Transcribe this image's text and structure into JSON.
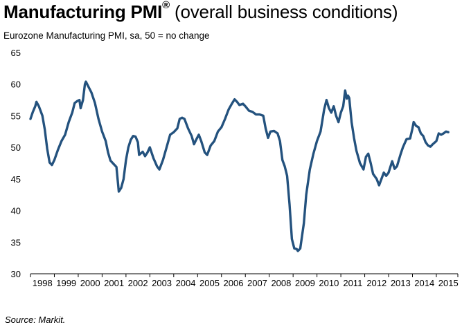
{
  "header": {
    "title_bold": "Manufacturing PMI",
    "title_sup": "®",
    "title_rest": " (overall business conditions)",
    "subtitle": "Eurozone Manufacturing PMI, sa, 50 = no change"
  },
  "footer": {
    "source": "Source: Markit."
  },
  "colors": {
    "line": "#24527e",
    "axis": "#000000"
  },
  "chart_data": {
    "type": "line",
    "title": "Manufacturing PMI® (overall business conditions)",
    "subtitle": "Eurozone Manufacturing PMI, sa, 50 = no change",
    "xlabel": "",
    "ylabel": "",
    "ylim": [
      30,
      65
    ],
    "yticks": [
      30,
      35,
      40,
      45,
      50,
      55,
      60,
      65
    ],
    "xlim": [
      1998.0,
      2015.9
    ],
    "xticks": [
      "1998",
      "1999",
      "2000",
      "2001",
      "2002",
      "2003",
      "2004",
      "2005",
      "2006",
      "2007",
      "2008",
      "2009",
      "2010",
      "2011",
      "2012",
      "2013",
      "2014",
      "2015"
    ],
    "grid": false,
    "series": [
      {
        "name": "Eurozone Manufacturing PMI",
        "points": [
          [
            1998.0,
            54.5
          ],
          [
            1998.1,
            55.6
          ],
          [
            1998.2,
            56.5
          ],
          [
            1998.25,
            57.2
          ],
          [
            1998.35,
            56.5
          ],
          [
            1998.5,
            55.0
          ],
          [
            1998.6,
            52.8
          ],
          [
            1998.7,
            49.8
          ],
          [
            1998.8,
            47.6
          ],
          [
            1998.9,
            47.2
          ],
          [
            1999.0,
            48.0
          ],
          [
            1999.15,
            49.6
          ],
          [
            1999.3,
            51.0
          ],
          [
            1999.45,
            52.0
          ],
          [
            1999.6,
            54.0
          ],
          [
            1999.75,
            55.5
          ],
          [
            1999.85,
            57.0
          ],
          [
            1999.95,
            57.3
          ],
          [
            2000.05,
            57.5
          ],
          [
            2000.1,
            56.2
          ],
          [
            2000.2,
            57.5
          ],
          [
            2000.28,
            60.0
          ],
          [
            2000.32,
            60.4
          ],
          [
            2000.4,
            59.8
          ],
          [
            2000.55,
            58.7
          ],
          [
            2000.7,
            57.0
          ],
          [
            2000.85,
            54.5
          ],
          [
            2001.0,
            52.5
          ],
          [
            2001.15,
            51.0
          ],
          [
            2001.25,
            49.2
          ],
          [
            2001.35,
            47.9
          ],
          [
            2001.5,
            47.3
          ],
          [
            2001.6,
            46.9
          ],
          [
            2001.7,
            43.0
          ],
          [
            2001.8,
            43.6
          ],
          [
            2001.9,
            45.0
          ],
          [
            2002.0,
            48.0
          ],
          [
            2002.1,
            50.0
          ],
          [
            2002.2,
            51.2
          ],
          [
            2002.3,
            51.8
          ],
          [
            2002.4,
            51.7
          ],
          [
            2002.5,
            50.8
          ],
          [
            2002.55,
            48.8
          ],
          [
            2002.7,
            49.3
          ],
          [
            2002.8,
            48.6
          ],
          [
            2002.9,
            49.2
          ],
          [
            2003.0,
            50.0
          ],
          [
            2003.15,
            48.3
          ],
          [
            2003.3,
            47.0
          ],
          [
            2003.4,
            46.5
          ],
          [
            2003.55,
            48.0
          ],
          [
            2003.7,
            50.0
          ],
          [
            2003.85,
            52.0
          ],
          [
            2004.0,
            52.4
          ],
          [
            2004.15,
            53.0
          ],
          [
            2004.25,
            54.5
          ],
          [
            2004.35,
            54.7
          ],
          [
            2004.45,
            54.5
          ],
          [
            2004.6,
            53.0
          ],
          [
            2004.75,
            51.8
          ],
          [
            2004.85,
            50.5
          ],
          [
            2004.95,
            51.3
          ],
          [
            2005.05,
            52.0
          ],
          [
            2005.15,
            51.0
          ],
          [
            2005.3,
            49.2
          ],
          [
            2005.4,
            48.8
          ],
          [
            2005.55,
            50.3
          ],
          [
            2005.7,
            51.0
          ],
          [
            2005.85,
            52.5
          ],
          [
            2006.0,
            53.2
          ],
          [
            2006.15,
            54.5
          ],
          [
            2006.3,
            56.0
          ],
          [
            2006.45,
            57.0
          ],
          [
            2006.55,
            57.6
          ],
          [
            2006.65,
            57.2
          ],
          [
            2006.75,
            56.7
          ],
          [
            2006.9,
            56.9
          ],
          [
            2007.0,
            56.5
          ],
          [
            2007.15,
            55.8
          ],
          [
            2007.3,
            55.6
          ],
          [
            2007.45,
            55.2
          ],
          [
            2007.6,
            55.2
          ],
          [
            2007.75,
            55.0
          ],
          [
            2007.85,
            53.0
          ],
          [
            2007.95,
            51.5
          ],
          [
            2008.05,
            52.5
          ],
          [
            2008.2,
            52.6
          ],
          [
            2008.35,
            52.2
          ],
          [
            2008.45,
            51.0
          ],
          [
            2008.55,
            48.0
          ],
          [
            2008.65,
            47.0
          ],
          [
            2008.75,
            45.5
          ],
          [
            2008.85,
            41.0
          ],
          [
            2008.95,
            35.5
          ],
          [
            2009.05,
            34.0
          ],
          [
            2009.15,
            33.9
          ],
          [
            2009.2,
            33.6
          ],
          [
            2009.3,
            34.0
          ],
          [
            2009.45,
            38.0
          ],
          [
            2009.55,
            42.5
          ],
          [
            2009.7,
            46.5
          ],
          [
            2009.85,
            49.0
          ],
          [
            2010.0,
            51.0
          ],
          [
            2010.15,
            52.5
          ],
          [
            2010.3,
            56.0
          ],
          [
            2010.4,
            57.5
          ],
          [
            2010.5,
            56.2
          ],
          [
            2010.6,
            55.5
          ],
          [
            2010.7,
            56.5
          ],
          [
            2010.8,
            55.0
          ],
          [
            2010.9,
            54.0
          ],
          [
            2011.0,
            55.5
          ],
          [
            2011.1,
            56.5
          ],
          [
            2011.18,
            59.0
          ],
          [
            2011.25,
            57.7
          ],
          [
            2011.3,
            58.2
          ],
          [
            2011.35,
            57.8
          ],
          [
            2011.45,
            54.0
          ],
          [
            2011.55,
            51.5
          ],
          [
            2011.65,
            49.5
          ],
          [
            2011.8,
            47.5
          ],
          [
            2011.95,
            46.5
          ],
          [
            2012.05,
            48.5
          ],
          [
            2012.15,
            49.0
          ],
          [
            2012.25,
            47.5
          ],
          [
            2012.35,
            45.8
          ],
          [
            2012.5,
            45.0
          ],
          [
            2012.6,
            44.0
          ],
          [
            2012.7,
            45.0
          ],
          [
            2012.8,
            46.0
          ],
          [
            2012.9,
            45.5
          ],
          [
            2013.0,
            46.0
          ],
          [
            2013.15,
            47.8
          ],
          [
            2013.25,
            46.6
          ],
          [
            2013.35,
            47.0
          ],
          [
            2013.5,
            48.9
          ],
          [
            2013.6,
            50.0
          ],
          [
            2013.75,
            51.3
          ],
          [
            2013.9,
            51.4
          ],
          [
            2014.0,
            53.0
          ],
          [
            2014.05,
            54.0
          ],
          [
            2014.15,
            53.4
          ],
          [
            2014.25,
            53.2
          ],
          [
            2014.35,
            52.2
          ],
          [
            2014.45,
            51.8
          ],
          [
            2014.55,
            50.8
          ],
          [
            2014.65,
            50.3
          ],
          [
            2014.75,
            50.1
          ],
          [
            2014.85,
            50.5
          ],
          [
            2015.0,
            51.0
          ],
          [
            2015.1,
            52.2
          ],
          [
            2015.2,
            52.0
          ],
          [
            2015.3,
            52.2
          ],
          [
            2015.4,
            52.5
          ],
          [
            2015.5,
            52.4
          ]
        ]
      }
    ]
  }
}
